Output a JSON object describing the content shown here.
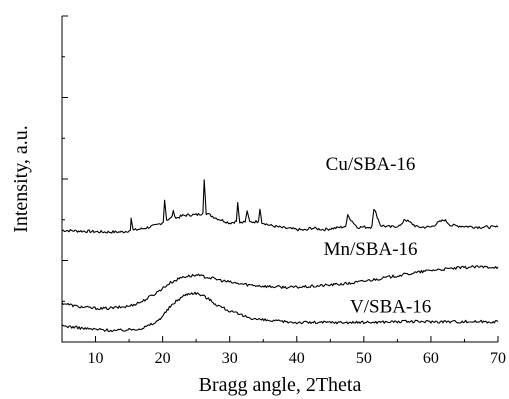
{
  "chart_data": {
    "type": "line",
    "title": "",
    "xlabel": "Bragg angle, 2Theta",
    "ylabel": "Intensity, a.u.",
    "xlim": [
      5,
      70
    ],
    "ylim": [
      0,
      4
    ],
    "x_ticks": [
      10,
      20,
      30,
      40,
      50,
      60,
      70
    ],
    "x_tick_labels": [
      "10",
      "20",
      "30",
      "40",
      "50",
      "60",
      "70"
    ],
    "y_ticks": [
      1,
      2,
      3,
      4
    ],
    "y_tick_labels": [],
    "grid": false,
    "legend": "none",
    "series": [
      {
        "name": "Cu/SBA-16",
        "label_at": {
          "x": 51,
          "y": 2.11
        },
        "x": [
          5,
          8,
          11,
          14,
          15.2,
          15.3,
          15.6,
          17,
          19,
          20.1,
          20.3,
          20.6,
          21.3,
          21.6,
          22,
          23,
          24,
          25,
          26,
          26.2,
          26.5,
          28,
          30,
          31,
          31.2,
          31.5,
          32.3,
          32.6,
          33,
          34.3,
          34.5,
          34.8,
          36,
          38,
          40,
          41.5,
          42,
          44,
          46,
          47.3,
          47.6,
          49,
          51,
          51.2,
          51.5,
          52.5,
          54,
          55.6,
          56,
          58,
          60,
          61,
          62,
          63,
          65,
          67,
          70
        ],
        "y": [
          1.37,
          1.36,
          1.35,
          1.35,
          1.37,
          1.52,
          1.37,
          1.39,
          1.43,
          1.47,
          1.74,
          1.5,
          1.52,
          1.6,
          1.52,
          1.55,
          1.56,
          1.56,
          1.58,
          1.99,
          1.58,
          1.52,
          1.46,
          1.48,
          1.71,
          1.46,
          1.47,
          1.61,
          1.47,
          1.48,
          1.63,
          1.47,
          1.43,
          1.4,
          1.38,
          1.37,
          1.4,
          1.38,
          1.4,
          1.42,
          1.55,
          1.41,
          1.41,
          1.42,
          1.64,
          1.43,
          1.41,
          1.43,
          1.51,
          1.41,
          1.41,
          1.46,
          1.5,
          1.43,
          1.42,
          1.41,
          1.41
        ]
      },
      {
        "name": "Mn/SBA-16",
        "label_at": {
          "x": 51,
          "y": 1.07
        },
        "x": [
          5,
          7,
          9,
          11,
          13,
          15,
          17,
          19,
          21,
          23,
          25,
          27,
          29,
          31,
          33,
          36,
          39,
          42,
          45,
          48,
          51,
          54,
          57,
          60,
          63,
          66,
          70
        ],
        "y": [
          0.48,
          0.44,
          0.42,
          0.41,
          0.42,
          0.44,
          0.5,
          0.6,
          0.72,
          0.8,
          0.82,
          0.79,
          0.75,
          0.72,
          0.7,
          0.68,
          0.67,
          0.68,
          0.7,
          0.72,
          0.76,
          0.8,
          0.84,
          0.88,
          0.9,
          0.92,
          0.92
        ]
      },
      {
        "name": "V/SBA-16",
        "label_at": {
          "x": 54,
          "y": 0.36
        },
        "x": [
          5,
          7,
          9,
          11,
          13,
          15,
          17,
          19,
          20,
          21,
          22,
          23,
          24,
          25,
          26,
          27,
          28,
          29,
          30,
          32,
          34,
          36,
          38,
          40,
          43,
          46,
          50,
          55,
          60,
          65,
          70
        ],
        "y": [
          0.2,
          0.18,
          0.16,
          0.15,
          0.14,
          0.15,
          0.17,
          0.24,
          0.32,
          0.42,
          0.5,
          0.56,
          0.6,
          0.6,
          0.57,
          0.52,
          0.46,
          0.42,
          0.38,
          0.32,
          0.28,
          0.26,
          0.25,
          0.24,
          0.24,
          0.24,
          0.24,
          0.25,
          0.25,
          0.25,
          0.25
        ]
      }
    ]
  }
}
